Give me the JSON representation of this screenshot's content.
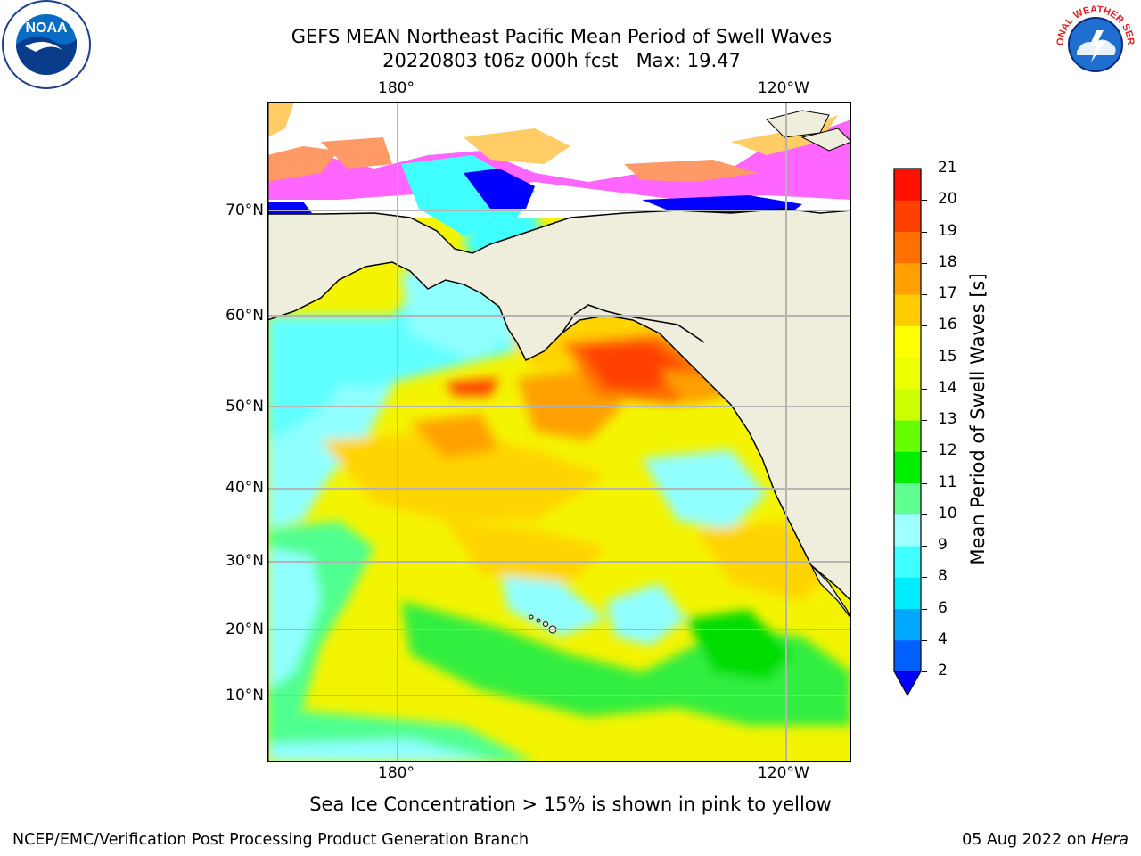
{
  "title": {
    "line1": "GEFS MEAN Northeast Pacific Mean Period of Swell Waves",
    "line2": "20220803 t06z 000h fcst   Max: 19.47"
  },
  "map": {
    "lon_labels_top": [
      "180°",
      "120°W"
    ],
    "lon_labels_bottom": [
      "180°",
      "120°W"
    ],
    "lat_labels": [
      "70°N",
      "60°N",
      "50°N",
      "40°N",
      "30°N",
      "20°N",
      "10°N"
    ],
    "land_color": "#efeddc",
    "grid_color": "#b4b4b4",
    "sea_ice_colors": [
      "#ff66ff",
      "#ff9966",
      "#ffcc66"
    ]
  },
  "colorbar": {
    "label": "Mean Period of Swell Waves [s]",
    "ticks": [
      "2",
      "4",
      "6",
      "8",
      "9",
      "10",
      "11",
      "12",
      "13",
      "14",
      "15",
      "16",
      "17",
      "18",
      "19",
      "20",
      "21"
    ],
    "colors": [
      "#0060ff",
      "#00a8ff",
      "#00ecff",
      "#40ffff",
      "#a0ffff",
      "#60ff90",
      "#00ee00",
      "#66ff00",
      "#ccff00",
      "#eeff00",
      "#ffff00",
      "#ffcc00",
      "#ffa000",
      "#ff7000",
      "#ff4000",
      "#ff1000"
    ],
    "extend_color": "#0000ff"
  },
  "caption": "Sea Ice Concentration > 15% is shown in pink to yellow",
  "footer": {
    "left": "NCEP/EMC/Verification Post Processing Product Generation Branch",
    "date": "05 Aug 2022 on",
    "host": "Hera"
  },
  "logos": {
    "left": "NOAA",
    "right": "NATIONAL WEATHER SERVICE"
  }
}
